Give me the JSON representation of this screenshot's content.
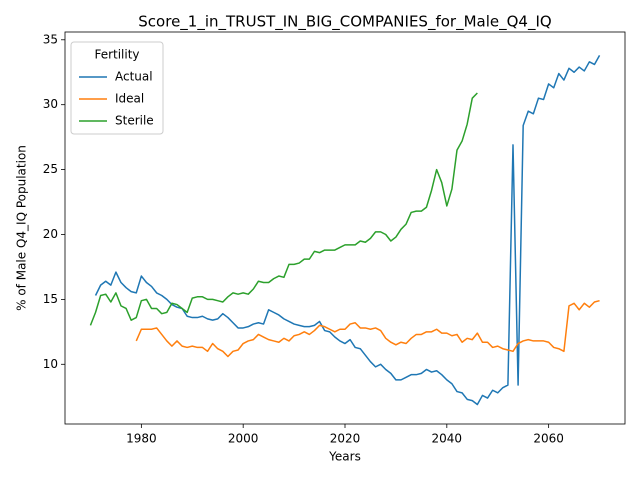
{
  "chart_data": {
    "type": "line",
    "title": "Score_1_in_TRUST_IN_BIG_COMPANIES_for_Male_Q4_IQ",
    "xlabel": "Years",
    "ylabel": "% of Male Q4_IQ Population",
    "legend_title": "Fertility",
    "legend": "upper left",
    "x": [
      1970,
      1971,
      1972,
      1973,
      1974,
      1975,
      1976,
      1977,
      1978,
      1979,
      1980,
      1981,
      1982,
      1983,
      1984,
      1985,
      1986,
      1987,
      1988,
      1989,
      1990,
      1991,
      1992,
      1993,
      1994,
      1995,
      1996,
      1997,
      1998,
      1999,
      2000,
      2001,
      2002,
      2003,
      2004,
      2005,
      2006,
      2007,
      2008,
      2009,
      2010,
      2011,
      2012,
      2013,
      2014,
      2015,
      2016,
      2017,
      2018,
      2019,
      2020,
      2021,
      2022,
      2023,
      2024,
      2025,
      2026,
      2027,
      2028,
      2029,
      2030,
      2031,
      2032,
      2033,
      2034,
      2035,
      2036,
      2037,
      2038,
      2039,
      2040,
      2041,
      2042,
      2043,
      2044,
      2045,
      2046,
      2047,
      2048,
      2049,
      2050,
      2051,
      2052,
      2053,
      2054,
      2055,
      2056,
      2057,
      2058,
      2059,
      2060,
      2061,
      2062,
      2063,
      2064,
      2065,
      2066,
      2067,
      2068,
      2069,
      2070
    ],
    "xlim": [
      1965,
      2075
    ],
    "xticks": [
      1980,
      2000,
      2020,
      2040,
      2060
    ],
    "ylim": [
      5.4,
      35.6
    ],
    "yticks": [
      10,
      15,
      20,
      25,
      30,
      35
    ],
    "series": [
      {
        "name": "Actual",
        "color": "#1f77b4",
        "values": [
          null,
          15.3,
          16.1,
          16.4,
          16.1,
          17.1,
          16.3,
          15.9,
          15.6,
          15.5,
          16.8,
          16.3,
          16.0,
          15.5,
          15.3,
          15.0,
          14.6,
          14.4,
          14.3,
          13.7,
          13.6,
          13.6,
          13.7,
          13.5,
          13.4,
          13.5,
          13.9,
          13.6,
          13.2,
          12.8,
          12.8,
          12.9,
          13.1,
          13.2,
          13.1,
          14.2,
          14.0,
          13.8,
          13.5,
          13.3,
          13.1,
          13.0,
          12.9,
          12.9,
          13.0,
          13.3,
          12.6,
          12.5,
          12.1,
          11.8,
          11.6,
          11.9,
          11.3,
          11.2,
          10.7,
          10.2,
          9.8,
          10.0,
          9.6,
          9.3,
          8.8,
          8.8,
          9.0,
          9.2,
          9.2,
          9.3,
          9.6,
          9.4,
          9.5,
          9.2,
          8.8,
          8.5,
          7.9,
          7.8,
          7.3,
          7.2,
          6.9,
          7.6,
          7.4,
          8.0,
          7.8,
          8.2,
          8.4,
          26.9,
          8.4,
          28.4,
          29.5,
          29.3,
          30.5,
          30.4,
          31.6,
          31.3,
          32.4,
          31.9,
          32.8,
          32.5,
          32.9,
          32.6,
          33.3,
          33.1,
          33.8
        ]
      },
      {
        "name": "Ideal",
        "color": "#ff7f0e",
        "values": [
          null,
          null,
          null,
          null,
          null,
          null,
          null,
          null,
          null,
          11.8,
          12.7,
          12.7,
          12.7,
          12.8,
          12.3,
          11.8,
          11.4,
          11.8,
          11.4,
          11.3,
          11.4,
          11.3,
          11.3,
          11.0,
          11.6,
          11.2,
          11.0,
          10.6,
          11.0,
          11.1,
          11.6,
          11.8,
          11.9,
          12.3,
          12.1,
          11.9,
          11.8,
          11.7,
          12.0,
          11.8,
          12.2,
          12.3,
          12.5,
          12.3,
          12.6,
          13.0,
          12.9,
          12.7,
          12.5,
          12.7,
          12.7,
          13.1,
          13.2,
          12.8,
          12.8,
          12.7,
          12.8,
          12.6,
          12.0,
          11.7,
          11.5,
          11.7,
          11.6,
          12.0,
          12.3,
          12.3,
          12.5,
          12.5,
          12.7,
          12.4,
          12.4,
          12.2,
          12.3,
          11.7,
          12.0,
          11.9,
          12.4,
          11.7,
          11.7,
          11.3,
          11.4,
          11.2,
          11.1,
          11.0,
          11.6,
          11.8,
          11.9,
          11.8,
          11.8,
          11.8,
          11.7,
          11.3,
          11.2,
          11.0,
          14.5,
          14.7,
          14.2,
          14.7,
          14.4,
          14.8,
          14.9
        ]
      },
      {
        "name": "Sterile",
        "color": "#2ca02c",
        "values": [
          13.0,
          14.0,
          15.3,
          15.4,
          14.8,
          15.5,
          14.5,
          14.3,
          13.4,
          13.6,
          14.9,
          15.0,
          14.3,
          14.3,
          13.9,
          14.0,
          14.7,
          14.6,
          14.3,
          14.0,
          15.1,
          15.2,
          15.2,
          15.0,
          15.0,
          14.9,
          14.8,
          15.2,
          15.5,
          15.4,
          15.5,
          15.4,
          15.8,
          16.4,
          16.3,
          16.3,
          16.6,
          16.8,
          16.7,
          17.7,
          17.7,
          17.8,
          18.1,
          18.1,
          18.7,
          18.6,
          18.8,
          18.8,
          18.8,
          19.0,
          19.2,
          19.2,
          19.2,
          19.5,
          19.4,
          19.7,
          20.2,
          20.2,
          20.0,
          19.5,
          19.8,
          20.4,
          20.8,
          21.7,
          21.8,
          21.8,
          22.1,
          23.4,
          25.0,
          24.0,
          22.2,
          23.5,
          26.5,
          27.2,
          28.5,
          30.5,
          30.9,
          null,
          null,
          null,
          null,
          null,
          null,
          null,
          null,
          null,
          null,
          null,
          null,
          null,
          null,
          null,
          null,
          null,
          null,
          null,
          null,
          null,
          null,
          null,
          null
        ]
      }
    ]
  }
}
